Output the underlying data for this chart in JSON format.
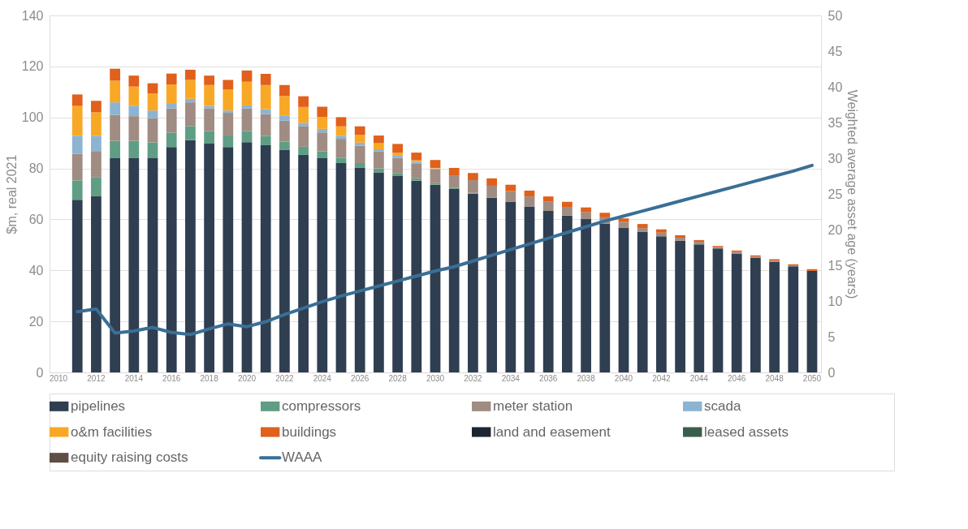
{
  "chart_data": {
    "type": "bar",
    "stacked": true,
    "ylabel": "$m, real 2021",
    "y2label": "Weighted average asset age (years)",
    "categories": [
      "2010",
      null,
      "2012",
      null,
      "2014",
      null,
      "2016",
      null,
      "2018",
      null,
      "2020",
      null,
      "2022",
      null,
      "2024",
      null,
      "2026",
      null,
      "2028",
      null,
      "2030",
      null,
      "2032",
      null,
      "2034",
      null,
      "2036",
      null,
      "2038",
      null,
      "2040",
      null,
      "2042",
      null,
      "2044",
      null,
      "2046",
      null,
      "2048",
      null,
      "2050"
    ],
    "ylim": [
      0,
      140
    ],
    "yticks": [
      0,
      20,
      40,
      60,
      80,
      100,
      120,
      140
    ],
    "y2lim": [
      0,
      50
    ],
    "y2ticks": [
      0,
      5,
      10,
      15,
      20,
      25,
      30,
      35,
      40,
      45,
      50
    ],
    "grid": "y",
    "legend": "bottom",
    "series": [
      {
        "name": "pipelines",
        "color": "#2f3e50",
        "values": [
          null,
          67.7,
          69.2,
          84.0,
          84.0,
          84.0,
          88.4,
          91.1,
          89.7,
          88.4,
          90.3,
          89.1,
          87.2,
          85.3,
          84.0,
          82.1,
          80.2,
          78.4,
          77.0,
          75.2,
          73.6,
          71.9,
          70.1,
          68.5,
          67.0,
          65.1,
          63.3,
          61.5,
          60.1,
          58.4,
          56.6,
          55.2,
          53.4,
          51.6,
          50.2,
          48.6,
          46.6,
          45.0,
          43.4,
          41.6,
          39.8
        ]
      },
      {
        "name": "compressors",
        "color": "#5f9e85",
        "values": [
          null,
          7.6,
          7.4,
          6.8,
          6.8,
          6.2,
          5.6,
          5.5,
          4.9,
          4.5,
          4.4,
          3.7,
          3.3,
          3.2,
          2.7,
          2.1,
          1.9,
          1.6,
          1.2,
          0.9,
          0.6,
          0.4,
          0.3,
          0.2,
          0,
          0,
          0,
          0,
          0,
          0,
          0,
          0,
          0,
          0,
          0,
          0,
          0,
          0,
          0,
          0,
          0
        ]
      },
      {
        "name": "meter station",
        "color": "#a08c82",
        "values": [
          null,
          10.4,
          10.2,
          10.2,
          9.7,
          9.5,
          9.5,
          9.3,
          8.9,
          8.9,
          8.8,
          8.5,
          8.2,
          8.1,
          7.4,
          7.4,
          6.8,
          6.6,
          5.9,
          5.7,
          5.5,
          5.0,
          5.0,
          4.5,
          4.1,
          3.9,
          3.6,
          3.4,
          2.7,
          2.4,
          2.4,
          1.4,
          1.4,
          1.2,
          1.0,
          0.6,
          0.6,
          0.4,
          0.4,
          0.4,
          0
        ]
      },
      {
        "name": "scada",
        "color": "#8cb4d2",
        "values": [
          null,
          7.1,
          6.0,
          4.9,
          4.1,
          3.0,
          2.1,
          1.4,
          1.0,
          0.9,
          1.2,
          1.9,
          1.9,
          1.3,
          1.4,
          1.2,
          1.2,
          0.9,
          0.9,
          0.8,
          0.3,
          0,
          0,
          0,
          0,
          0,
          0,
          0,
          0,
          0,
          0,
          0,
          0,
          0,
          0,
          0,
          0,
          0,
          0,
          0,
          0
        ]
      },
      {
        "name": "o&m facilities",
        "color": "#f9a825",
        "values": [
          null,
          11.7,
          9.2,
          8.5,
          7.5,
          6.7,
          7.3,
          7.4,
          8.2,
          8.2,
          9.3,
          9.5,
          7.8,
          6.2,
          4.7,
          3.7,
          3.0,
          2.4,
          1.2,
          0.6,
          0.2,
          0,
          0,
          0,
          0,
          0,
          0,
          0,
          0,
          0,
          0,
          0,
          0,
          0,
          0,
          0,
          0,
          0,
          0,
          0,
          0
        ]
      },
      {
        "name": "buildings",
        "color": "#e0601c",
        "values": [
          null,
          4.5,
          4.5,
          4.7,
          4.3,
          4.0,
          4.3,
          4.0,
          3.7,
          3.8,
          4.4,
          4.4,
          4.3,
          4.2,
          4.0,
          3.6,
          3.4,
          3.0,
          3.4,
          3.0,
          3.1,
          2.9,
          2.8,
          2.9,
          2.5,
          2.3,
          2.1,
          2.0,
          1.9,
          1.8,
          1.4,
          1.6,
          1.3,
          1.0,
          0.7,
          0.4,
          0.6,
          0.5,
          0.6,
          0.4,
          0.7
        ]
      },
      {
        "name": "land and easement",
        "color": "#1c2530",
        "values": [
          null,
          0,
          0,
          0,
          0,
          0,
          0,
          0,
          0,
          0,
          0,
          0,
          0,
          0,
          0,
          0,
          0,
          0,
          0,
          0,
          0,
          0,
          0,
          0,
          0,
          0,
          0,
          0,
          0,
          0,
          0,
          0,
          0,
          0,
          0,
          0,
          0,
          0,
          0,
          0,
          0
        ]
      },
      {
        "name": "leased assets",
        "color": "#3a5e4c",
        "values": [
          null,
          0,
          0,
          0,
          0,
          0,
          0,
          0,
          0,
          0,
          0,
          0,
          0,
          0,
          0,
          0,
          0,
          0,
          0,
          0,
          0,
          0,
          0,
          0,
          0,
          0,
          0,
          0,
          0,
          0,
          0,
          0,
          0,
          0,
          0,
          0,
          0,
          0,
          0,
          0,
          0
        ]
      },
      {
        "name": "equity raising costs",
        "color": "#5e4e46",
        "values": [
          null,
          0,
          0,
          0,
          0,
          0,
          0,
          0,
          0,
          0,
          0,
          0,
          0,
          0,
          0,
          0,
          0,
          0,
          0,
          0,
          0,
          0,
          0,
          0,
          0,
          0,
          0,
          0,
          0,
          0,
          0,
          0,
          0,
          0,
          0,
          0,
          0,
          0,
          0,
          0,
          0
        ]
      },
      {
        "name": "WAAA",
        "color": "#3a6f96",
        "type": "line",
        "axis": "y2",
        "values": [
          null,
          8.5,
          8.9,
          5.5,
          5.8,
          6.3,
          5.6,
          5.3,
          6.1,
          6.8,
          6.4,
          7.1,
          8.1,
          9.0,
          9.9,
          10.7,
          11.4,
          12.1,
          12.8,
          13.5,
          14.2,
          14.8,
          15.6,
          16.4,
          17.2,
          18.0,
          18.8,
          19.6,
          20.4,
          21.2,
          21.9,
          22.6,
          23.3,
          24.0,
          24.7,
          25.4,
          26.1,
          26.8,
          27.5,
          28.2,
          29.0
        ]
      }
    ]
  }
}
